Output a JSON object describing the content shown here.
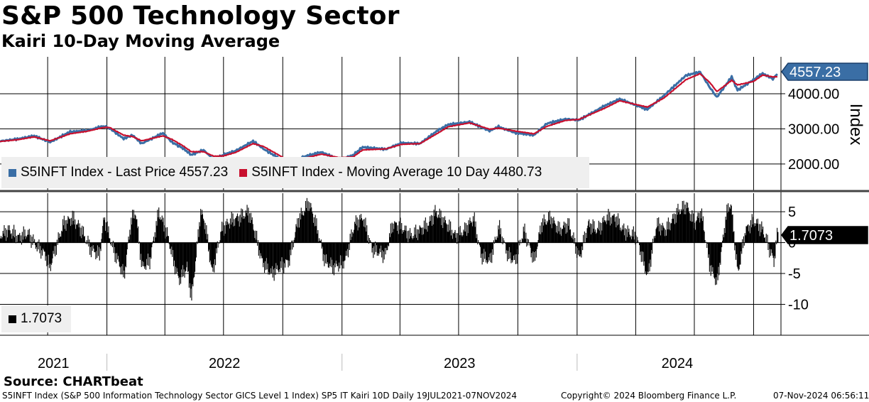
{
  "header": {
    "title": "S&P 500 Technology Sector",
    "subtitle": "Kairi 10-Day Moving Average"
  },
  "legend_top": {
    "item1": "S5INFT Index - Last Price 4557.23",
    "item2": "S5INFT Index - Moving Average 10 Day 4480.73"
  },
  "legend_bottom": {
    "item1": "1.7073"
  },
  "source": "Source: CHARTbeat",
  "footer": {
    "description": "S5INFT Index (S&P 500 Information Technology Sector GICS Level 1 Index) SP5 IT Kairi 10D  Daily 19JUL2021-07NOV2024",
    "copyright": "Copyright© 2024 Bloomberg Finance L.P.",
    "timestamp": "07-Nov-2024 06:56:11"
  },
  "colors": {
    "price": "#3a6ea5",
    "moving_average": "#c8102e",
    "kairi": "#000000",
    "legend_bg": "#efefef"
  },
  "chart_data": [
    {
      "type": "line",
      "ylabel": "Index",
      "ylim": [
        1250,
        5050
      ],
      "yticks": [
        2000,
        3000,
        4000
      ],
      "ytick_labels": [
        "2000.00",
        "3000.00",
        "4000.00"
      ],
      "xlim": [
        "2021-07-19",
        "2024-11-07"
      ],
      "x_labels": [
        "2021",
        "2022",
        "2023",
        "2024"
      ],
      "grid": true,
      "legend_position": "bottom-left",
      "last_value_tag": "4557.23",
      "series": [
        {
          "name": "S5INFT Index - Last Price",
          "points": [
            [
              "2021-07-19",
              2650
            ],
            [
              "2021-08-15",
              2710
            ],
            [
              "2021-09-10",
              2800
            ],
            [
              "2021-10-05",
              2620
            ],
            [
              "2021-11-05",
              2920
            ],
            [
              "2021-12-01",
              2950
            ],
            [
              "2021-12-27",
              3080
            ],
            [
              "2022-01-05",
              3020
            ],
            [
              "2022-01-27",
              2720
            ],
            [
              "2022-02-10",
              2820
            ],
            [
              "2022-02-24",
              2580
            ],
            [
              "2022-03-29",
              2880
            ],
            [
              "2022-04-12",
              2620
            ],
            [
              "2022-04-29",
              2450
            ],
            [
              "2022-05-12",
              2260
            ],
            [
              "2022-05-31",
              2400
            ],
            [
              "2022-06-16",
              2120
            ],
            [
              "2022-07-01",
              2260
            ],
            [
              "2022-07-20",
              2380
            ],
            [
              "2022-08-16",
              2650
            ],
            [
              "2022-09-01",
              2430
            ],
            [
              "2022-09-30",
              2110
            ],
            [
              "2022-10-13",
              2030
            ],
            [
              "2022-11-01",
              2200
            ],
            [
              "2022-11-30",
              2340
            ],
            [
              "2022-12-28",
              2120
            ],
            [
              "2023-01-18",
              2250
            ],
            [
              "2023-02-02",
              2480
            ],
            [
              "2023-03-10",
              2420
            ],
            [
              "2023-04-04",
              2600
            ],
            [
              "2023-05-02",
              2580
            ],
            [
              "2023-05-30",
              2960
            ],
            [
              "2023-06-15",
              3120
            ],
            [
              "2023-07-18",
              3200
            ],
            [
              "2023-08-18",
              2940
            ],
            [
              "2023-09-01",
              3060
            ],
            [
              "2023-09-26",
              2890
            ],
            [
              "2023-10-26",
              2820
            ],
            [
              "2023-11-15",
              3150
            ],
            [
              "2023-12-14",
              3280
            ],
            [
              "2024-01-04",
              3250
            ],
            [
              "2024-02-12",
              3650
            ],
            [
              "2024-03-07",
              3850
            ],
            [
              "2024-04-19",
              3550
            ],
            [
              "2024-05-15",
              3950
            ],
            [
              "2024-06-18",
              4520
            ],
            [
              "2024-07-10",
              4620
            ],
            [
              "2024-07-25",
              4180
            ],
            [
              "2024-08-05",
              3900
            ],
            [
              "2024-08-28",
              4480
            ],
            [
              "2024-09-06",
              4100
            ],
            [
              "2024-10-01",
              4400
            ],
            [
              "2024-10-15",
              4580
            ],
            [
              "2024-10-31",
              4420
            ],
            [
              "2024-11-07",
              4557.23
            ]
          ]
        },
        {
          "name": "S5INFT Index - Moving Average 10 Day",
          "points": [
            [
              "2021-07-19",
              2640
            ],
            [
              "2021-08-15",
              2690
            ],
            [
              "2021-09-10",
              2770
            ],
            [
              "2021-10-05",
              2660
            ],
            [
              "2021-11-05",
              2860
            ],
            [
              "2021-12-01",
              2930
            ],
            [
              "2021-12-27",
              3040
            ],
            [
              "2022-01-05",
              3040
            ],
            [
              "2022-01-27",
              2820
            ],
            [
              "2022-02-10",
              2780
            ],
            [
              "2022-02-24",
              2660
            ],
            [
              "2022-03-29",
              2800
            ],
            [
              "2022-04-12",
              2700
            ],
            [
              "2022-04-29",
              2520
            ],
            [
              "2022-05-12",
              2350
            ],
            [
              "2022-05-31",
              2350
            ],
            [
              "2022-06-16",
              2220
            ],
            [
              "2022-07-01",
              2230
            ],
            [
              "2022-07-20",
              2330
            ],
            [
              "2022-08-16",
              2580
            ],
            [
              "2022-09-01",
              2500
            ],
            [
              "2022-09-30",
              2200
            ],
            [
              "2022-10-13",
              2090
            ],
            [
              "2022-11-01",
              2150
            ],
            [
              "2022-11-30",
              2280
            ],
            [
              "2022-12-28",
              2180
            ],
            [
              "2023-01-18",
              2200
            ],
            [
              "2023-02-02",
              2400
            ],
            [
              "2023-03-10",
              2430
            ],
            [
              "2023-04-04",
              2560
            ],
            [
              "2023-05-02",
              2580
            ],
            [
              "2023-05-30",
              2880
            ],
            [
              "2023-06-15",
              3060
            ],
            [
              "2023-07-18",
              3170
            ],
            [
              "2023-08-18",
              2990
            ],
            [
              "2023-09-01",
              3020
            ],
            [
              "2023-09-26",
              2940
            ],
            [
              "2023-10-26",
              2860
            ],
            [
              "2023-11-15",
              3070
            ],
            [
              "2023-12-14",
              3240
            ],
            [
              "2024-01-04",
              3270
            ],
            [
              "2024-02-12",
              3580
            ],
            [
              "2024-03-07",
              3800
            ],
            [
              "2024-04-19",
              3620
            ],
            [
              "2024-05-15",
              3880
            ],
            [
              "2024-06-18",
              4400
            ],
            [
              "2024-07-10",
              4570
            ],
            [
              "2024-07-25",
              4320
            ],
            [
              "2024-08-05",
              4060
            ],
            [
              "2024-08-28",
              4380
            ],
            [
              "2024-09-06",
              4250
            ],
            [
              "2024-10-01",
              4350
            ],
            [
              "2024-10-15",
              4530
            ],
            [
              "2024-10-31",
              4480
            ],
            [
              "2024-11-07",
              4480.73
            ]
          ]
        }
      ]
    },
    {
      "type": "bar",
      "ylim": [
        -15,
        8
      ],
      "yticks": [
        5,
        0,
        -5,
        -10
      ],
      "ytick_labels": [
        "5",
        "0",
        "-5",
        "-10"
      ],
      "xlim": [
        "2021-07-19",
        "2024-11-07"
      ],
      "grid": true,
      "legend_position": "bottom-left",
      "last_value_tag": "1.7073",
      "series": [
        {
          "name": "1.7073",
          "points": [
            [
              "2021-07-19",
              1.2
            ],
            [
              "2021-08-02",
              2.0
            ],
            [
              "2021-08-16",
              0.8
            ],
            [
              "2021-08-30",
              1.5
            ],
            [
              "2021-09-13",
              -0.5
            ],
            [
              "2021-09-27",
              -2.0
            ],
            [
              "2021-10-04",
              -4.0
            ],
            [
              "2021-10-11",
              -1.5
            ],
            [
              "2021-10-25",
              3.0
            ],
            [
              "2021-11-08",
              4.0
            ],
            [
              "2021-11-22",
              2.0
            ],
            [
              "2021-12-06",
              -1.0
            ],
            [
              "2021-12-20",
              -2.0
            ],
            [
              "2021-12-27",
              4.0
            ],
            [
              "2022-01-10",
              -1.0
            ],
            [
              "2022-01-20",
              -3.5
            ],
            [
              "2022-01-27",
              -5.5
            ],
            [
              "2022-02-07",
              3.5
            ],
            [
              "2022-02-14",
              5.0
            ],
            [
              "2022-02-24",
              -4.0
            ],
            [
              "2022-03-08",
              -3.0
            ],
            [
              "2022-03-22",
              5.0
            ],
            [
              "2022-04-05",
              1.0
            ],
            [
              "2022-04-14",
              -3.0
            ],
            [
              "2022-04-22",
              -6.0
            ],
            [
              "2022-05-05",
              -4.0
            ],
            [
              "2022-05-12",
              -9.0
            ],
            [
              "2022-05-26",
              5.0
            ],
            [
              "2022-06-02",
              3.0
            ],
            [
              "2022-06-13",
              -5.0
            ],
            [
              "2022-06-27",
              2.0
            ],
            [
              "2022-07-11",
              3.5
            ],
            [
              "2022-07-25",
              4.0
            ],
            [
              "2022-08-08",
              5.0
            ],
            [
              "2022-08-15",
              3.0
            ],
            [
              "2022-08-29",
              -3.0
            ],
            [
              "2022-09-13",
              -5.0
            ],
            [
              "2022-09-26",
              -4.0
            ],
            [
              "2022-10-10",
              -3.0
            ],
            [
              "2022-10-24",
              3.5
            ],
            [
              "2022-11-10",
              6.5
            ],
            [
              "2022-11-21",
              3.0
            ],
            [
              "2022-12-05",
              -3.0
            ],
            [
              "2022-12-19",
              -4.0
            ],
            [
              "2023-01-05",
              -3.0
            ],
            [
              "2023-01-20",
              3.0
            ],
            [
              "2023-02-02",
              4.0
            ],
            [
              "2023-02-16",
              -1.0
            ],
            [
              "2023-03-09",
              -2.0
            ],
            [
              "2023-03-20",
              3.0
            ],
            [
              "2023-04-03",
              2.5
            ],
            [
              "2023-04-17",
              1.0
            ],
            [
              "2023-05-01",
              2.0
            ],
            [
              "2023-05-15",
              3.0
            ],
            [
              "2023-05-26",
              5.0
            ],
            [
              "2023-06-12",
              3.0
            ],
            [
              "2023-06-26",
              1.0
            ],
            [
              "2023-07-10",
              2.0
            ],
            [
              "2023-07-24",
              4.0
            ],
            [
              "2023-08-04",
              -2.0
            ],
            [
              "2023-08-18",
              -3.0
            ],
            [
              "2023-09-01",
              2.5
            ],
            [
              "2023-09-15",
              -2.0
            ],
            [
              "2023-09-26",
              -3.0
            ],
            [
              "2023-10-10",
              2.0
            ],
            [
              "2023-10-26",
              -3.0
            ],
            [
              "2023-11-06",
              3.0
            ],
            [
              "2023-11-20",
              4.0
            ],
            [
              "2023-12-04",
              2.0
            ],
            [
              "2023-12-18",
              3.0
            ],
            [
              "2024-01-04",
              -2.5
            ],
            [
              "2024-01-18",
              3.0
            ],
            [
              "2024-02-01",
              2.0
            ],
            [
              "2024-02-15",
              4.0
            ],
            [
              "2024-02-29",
              4.0
            ],
            [
              "2024-03-12",
              2.0
            ],
            [
              "2024-04-01",
              1.0
            ],
            [
              "2024-04-19",
              -5.5
            ],
            [
              "2024-05-03",
              3.0
            ],
            [
              "2024-05-17",
              2.0
            ],
            [
              "2024-06-05",
              5.0
            ],
            [
              "2024-06-18",
              6.0
            ],
            [
              "2024-07-01",
              3.0
            ],
            [
              "2024-07-11",
              5.0
            ],
            [
              "2024-07-25",
              -4.0
            ],
            [
              "2024-08-05",
              -6.5
            ],
            [
              "2024-08-19",
              4.5
            ],
            [
              "2024-08-26",
              6.5
            ],
            [
              "2024-09-06",
              -5.0
            ],
            [
              "2024-09-18",
              2.0
            ],
            [
              "2024-10-01",
              3.5
            ],
            [
              "2024-10-15",
              2.0
            ],
            [
              "2024-10-25",
              -1.0
            ],
            [
              "2024-11-01",
              -3.0
            ],
            [
              "2024-11-07",
              1.7073
            ]
          ]
        }
      ]
    }
  ]
}
